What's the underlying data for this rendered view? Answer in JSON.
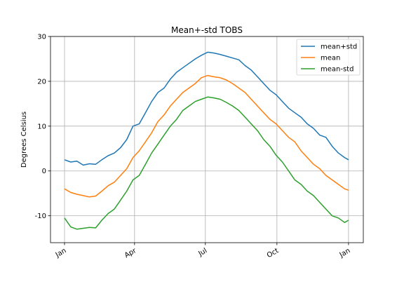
{
  "chart_data": {
    "type": "line",
    "title": "Mean+-std   TOBS",
    "xlabel": "",
    "ylabel": "Degrees Celsius",
    "xlim": [
      0,
      366
    ],
    "ylim": [
      -16,
      30
    ],
    "yticks": [
      -10,
      0,
      10,
      20,
      30
    ],
    "xticks": [
      {
        "label": "Jan",
        "day": 0
      },
      {
        "label": "Apr",
        "day": 90
      },
      {
        "label": "Jul",
        "day": 181
      },
      {
        "label": "Oct",
        "day": 273
      },
      {
        "label": "Jan",
        "day": 365
      }
    ],
    "grid": true,
    "legend_position": "top-right",
    "series": [
      {
        "name": "mean+std",
        "color": "#1f77b4",
        "x": [
          0,
          8,
          16,
          24,
          32,
          40,
          48,
          56,
          64,
          72,
          80,
          88,
          96,
          104,
          112,
          120,
          128,
          136,
          144,
          152,
          160,
          168,
          176,
          184,
          192,
          200,
          208,
          216,
          224,
          232,
          240,
          248,
          256,
          264,
          272,
          280,
          288,
          296,
          304,
          312,
          320,
          328,
          336,
          344,
          352,
          360,
          365
        ],
        "values": [
          2.5,
          2,
          2.2,
          1.3,
          1.6,
          1.5,
          2.5,
          3.4,
          4,
          5.2,
          7,
          10,
          10.5,
          13,
          15.5,
          17.5,
          18.5,
          20.5,
          22,
          23,
          24,
          25,
          25.8,
          26.5,
          26.3,
          26,
          25.6,
          25.2,
          24.8,
          23.5,
          22.5,
          21,
          19.5,
          18,
          17,
          15.5,
          14,
          13,
          12,
          10.5,
          9.5,
          8,
          7.5,
          5.5,
          4,
          3,
          2.5
        ]
      },
      {
        "name": "mean",
        "color": "#ff7f0e",
        "x": [
          0,
          8,
          16,
          24,
          32,
          40,
          48,
          56,
          64,
          72,
          80,
          88,
          96,
          104,
          112,
          120,
          128,
          136,
          144,
          152,
          160,
          168,
          176,
          184,
          192,
          200,
          208,
          216,
          224,
          232,
          240,
          248,
          256,
          264,
          272,
          280,
          288,
          296,
          304,
          312,
          320,
          328,
          336,
          344,
          352,
          360,
          365
        ],
        "values": [
          -4,
          -4.8,
          -5.2,
          -5.5,
          -5.8,
          -5.6,
          -4.5,
          -3.3,
          -2.5,
          -1,
          0.5,
          3,
          4.5,
          6.5,
          8.5,
          11,
          12.5,
          14.5,
          16,
          17.5,
          18.5,
          19.5,
          20.8,
          21.3,
          21,
          20.8,
          20.3,
          19.5,
          18.5,
          17.5,
          16,
          14.5,
          13,
          11.5,
          10.5,
          9,
          7.5,
          6.5,
          4.5,
          3,
          1.5,
          0.5,
          -1,
          -2,
          -3,
          -4,
          -4.3
        ]
      },
      {
        "name": "mean-std",
        "color": "#2ca02c",
        "x": [
          0,
          8,
          16,
          24,
          32,
          40,
          48,
          56,
          64,
          72,
          80,
          88,
          96,
          104,
          112,
          120,
          128,
          136,
          144,
          152,
          160,
          168,
          176,
          184,
          192,
          200,
          208,
          216,
          224,
          232,
          240,
          248,
          256,
          264,
          272,
          280,
          288,
          296,
          304,
          312,
          320,
          328,
          336,
          344,
          352,
          360,
          365
        ],
        "values": [
          -10.5,
          -12.5,
          -13,
          -12.8,
          -12.6,
          -12.7,
          -11,
          -9.5,
          -8.5,
          -6.5,
          -4.5,
          -2,
          -1,
          1.5,
          4,
          6,
          8,
          10,
          11.5,
          13.5,
          14.5,
          15.5,
          16,
          16.5,
          16.3,
          16,
          15.3,
          14.5,
          13.5,
          12,
          10.5,
          9,
          7,
          5.5,
          3.5,
          2,
          0,
          -2,
          -3,
          -4.5,
          -5.5,
          -7,
          -8.5,
          -10,
          -10.5,
          -11.5,
          -11
        ]
      }
    ]
  }
}
